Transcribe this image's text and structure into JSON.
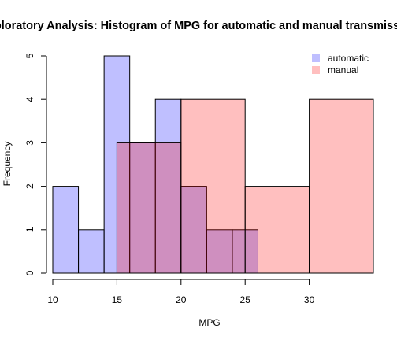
{
  "chart_data": {
    "type": "histogram",
    "title": "Exploratory Analysis: Histogram of MPG for automatic and manual transmission",
    "xlabel": "MPG",
    "ylabel": "Frequency",
    "xlim": [
      10,
      35
    ],
    "ylim": [
      0,
      5
    ],
    "x_ticks": [
      10,
      15,
      20,
      25,
      30
    ],
    "y_ticks": [
      0,
      1,
      2,
      3,
      4,
      5
    ],
    "legend_position": "top-right",
    "grid": false,
    "series": [
      {
        "name": "automatic",
        "color": "#0000ff",
        "fill_alpha": 0.25,
        "bins": [
          {
            "from": 10,
            "to": 12,
            "count": 2
          },
          {
            "from": 12,
            "to": 14,
            "count": 1
          },
          {
            "from": 14,
            "to": 16,
            "count": 5
          },
          {
            "from": 16,
            "to": 18,
            "count": 3
          },
          {
            "from": 18,
            "to": 20,
            "count": 4
          },
          {
            "from": 20,
            "to": 22,
            "count": 2
          },
          {
            "from": 22,
            "to": 24,
            "count": 1
          },
          {
            "from": 24,
            "to": 26,
            "count": 1
          }
        ]
      },
      {
        "name": "manual",
        "color": "#ff0000",
        "fill_alpha": 0.25,
        "bins": [
          {
            "from": 15,
            "to": 20,
            "count": 3
          },
          {
            "from": 20,
            "to": 25,
            "count": 4
          },
          {
            "from": 25,
            "to": 30,
            "count": 2
          },
          {
            "from": 30,
            "to": 35,
            "count": 4
          }
        ]
      }
    ]
  }
}
